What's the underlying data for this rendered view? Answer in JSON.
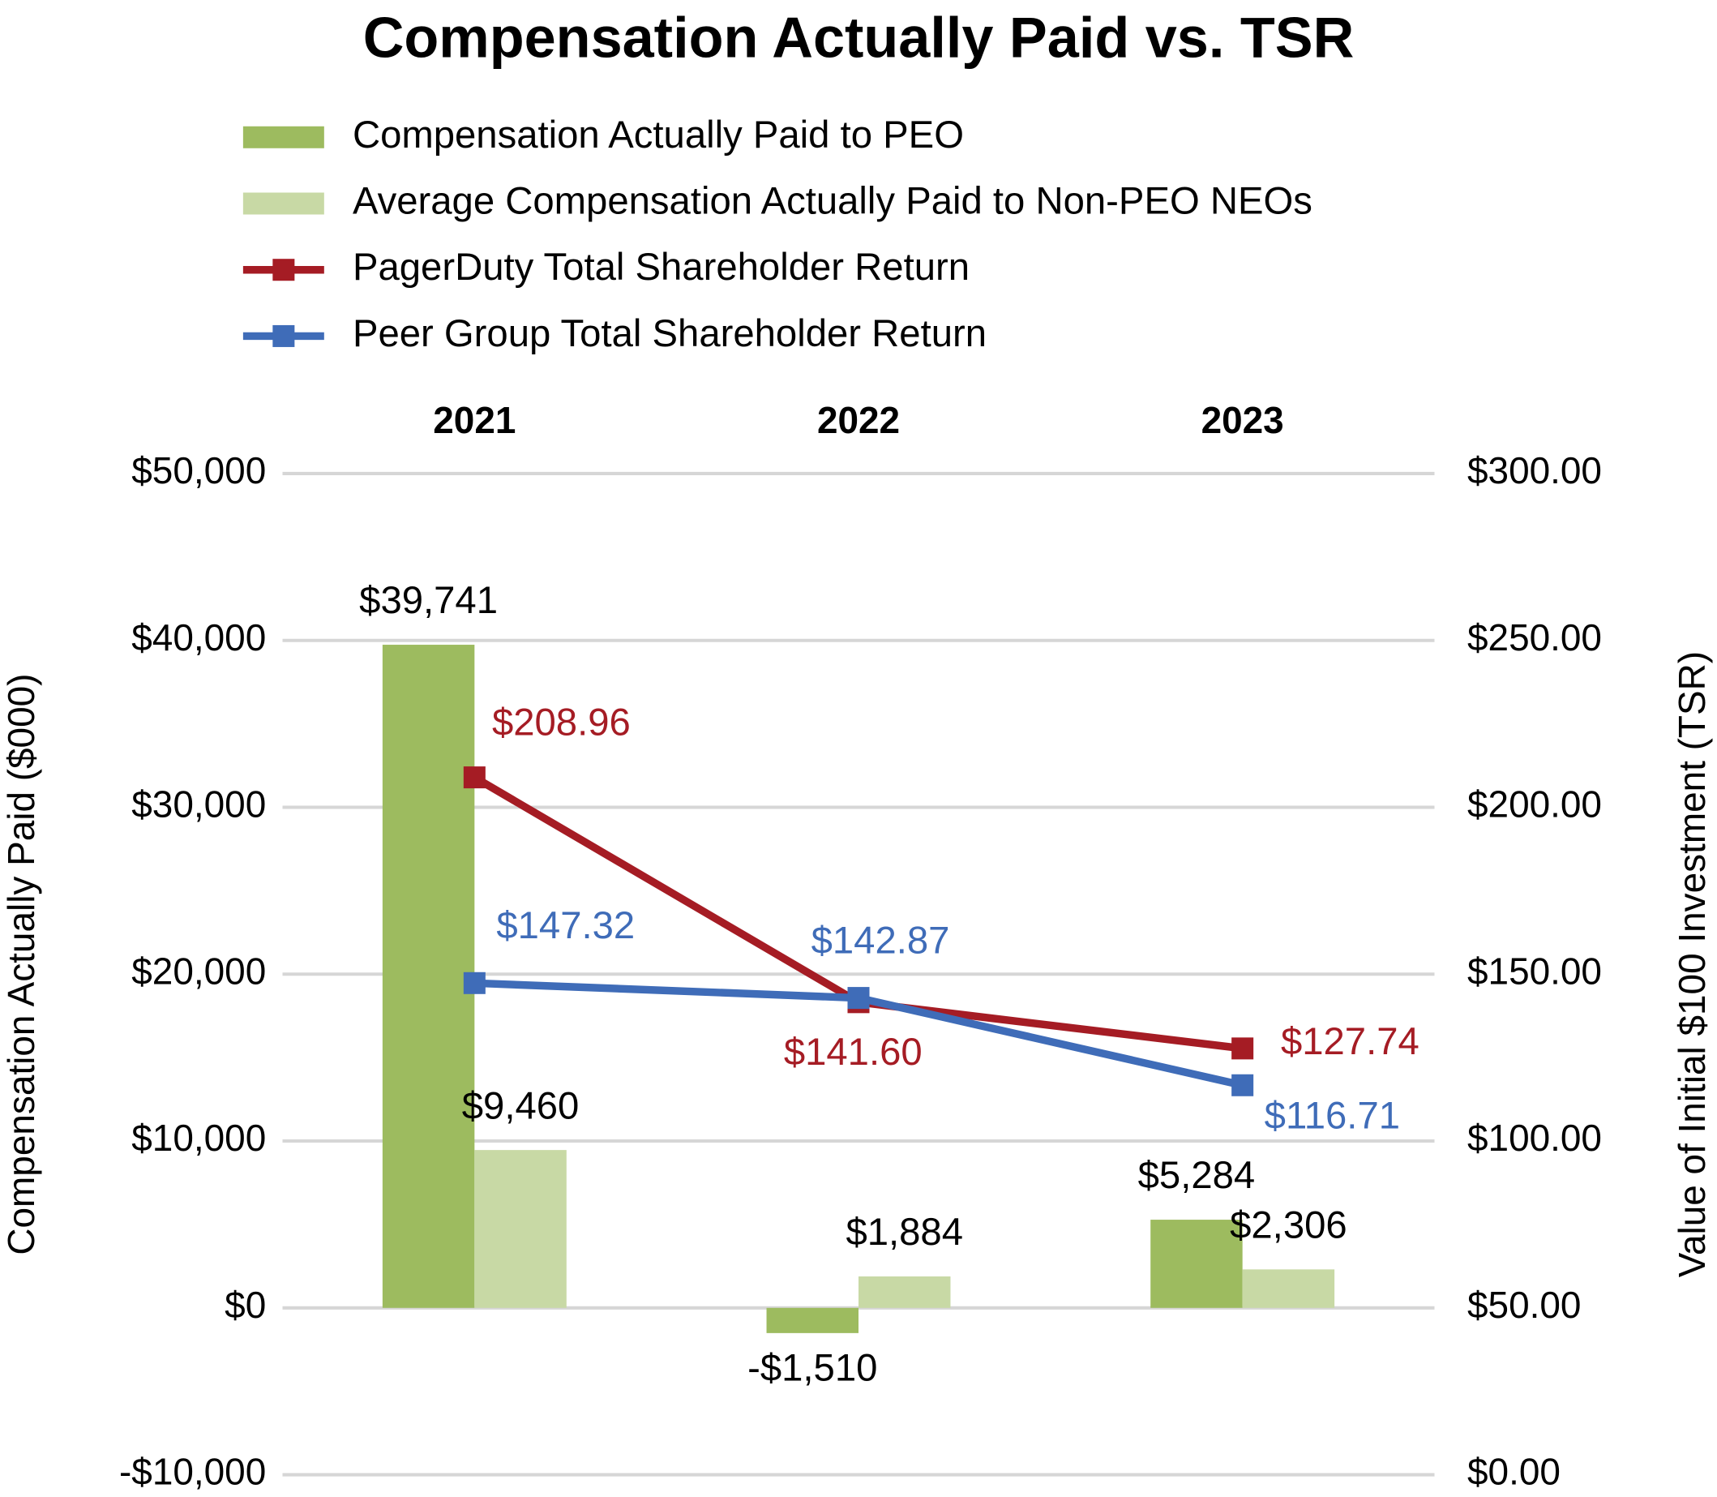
{
  "chart_data": {
    "type": "bar",
    "title": "Compensation Actually Paid vs. TSR",
    "y_label": "Compensation Actually Paid ($000)",
    "y2_label": "Value of Initial $100 Investment (TSR)",
    "categories": [
      "2021",
      "2022",
      "2023"
    ],
    "series": [
      {
        "name": "Compensation Actually Paid to PEO",
        "type": "bar",
        "color": "#9dbb5f",
        "values": [
          39741,
          -1510,
          5284
        ],
        "value_labels": [
          "$39,741",
          "-$1,510",
          "$5,284"
        ]
      },
      {
        "name": "Average Compensation Actually Paid to Non-PEO NEOs",
        "type": "bar",
        "color": "#c8d9a5",
        "values": [
          9460,
          1884,
          2306
        ],
        "value_labels": [
          "$9,460",
          "$1,884",
          "$2,306"
        ]
      },
      {
        "name": "PagerDuty Total Shareholder Return",
        "type": "line",
        "axis": "y2",
        "color": "#a51c24",
        "values": [
          208.96,
          141.6,
          127.74
        ],
        "value_labels": [
          "$208.96",
          "$141.60",
          "$127.74"
        ]
      },
      {
        "name": "Peer Group Total Shareholder Return",
        "type": "line",
        "axis": "y2",
        "color": "#3f6cb8",
        "values": [
          147.32,
          142.87,
          116.71
        ],
        "value_labels": [
          "$147.32",
          "$142.87",
          "$116.71"
        ]
      }
    ],
    "ylim": [
      -10000,
      50000
    ],
    "yticks": [
      {
        "value": -10000,
        "label": "-$10,000"
      },
      {
        "value": 0,
        "label": "$0"
      },
      {
        "value": 10000,
        "label": "$10,000"
      },
      {
        "value": 20000,
        "label": "$20,000"
      },
      {
        "value": 30000,
        "label": "$30,000"
      },
      {
        "value": 40000,
        "label": "$40,000"
      },
      {
        "value": 50000,
        "label": "$50,000"
      }
    ],
    "y2lim": [
      0,
      300
    ],
    "y2ticks": [
      {
        "value": 0,
        "label": "$0.00"
      },
      {
        "value": 50,
        "label": "$50.00"
      },
      {
        "value": 100,
        "label": "$100.00"
      },
      {
        "value": 150,
        "label": "$150.00"
      },
      {
        "value": 200,
        "label": "$200.00"
      },
      {
        "value": 250,
        "label": "$250.00"
      },
      {
        "value": 300,
        "label": "$300.00"
      }
    ],
    "grid": true,
    "legend": "top"
  }
}
